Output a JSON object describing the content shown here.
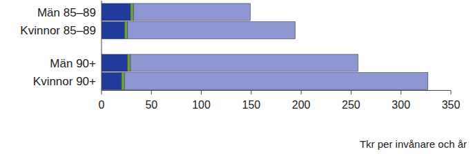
{
  "chart_data": {
    "type": "bar",
    "orientation": "horizontal",
    "stacked": true,
    "categories": [
      "Män 85–89",
      "Kvinnor 85–89",
      "Män 90+",
      "Kvinnor 90+"
    ],
    "series": [
      {
        "color": "#1f3c9a",
        "values": [
          29,
          23,
          26,
          20
        ]
      },
      {
        "color": "#6aa338",
        "values": [
          3,
          3,
          3,
          3
        ]
      },
      {
        "color": "#8d96d0",
        "values": [
          117,
          168,
          228,
          304
        ]
      }
    ],
    "x_label": "Tkr per invånare och år",
    "xlim": [
      0,
      350
    ],
    "xticks": [
      0,
      50,
      100,
      150,
      200,
      250,
      300,
      350
    ],
    "grid": false
  }
}
